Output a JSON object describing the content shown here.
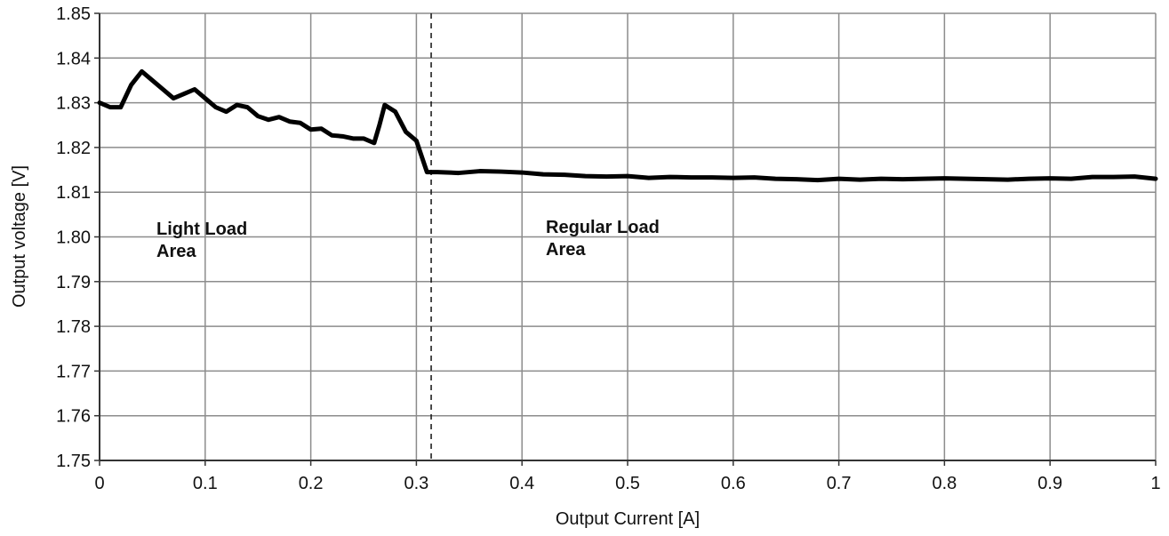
{
  "chart_data": {
    "type": "line",
    "x_label": "Output Current [A]",
    "y_label": "Output voltage [V]",
    "x": [
      0,
      0.01,
      0.02,
      0.03,
      0.04,
      0.05,
      0.06,
      0.07,
      0.08,
      0.09,
      0.1,
      0.11,
      0.12,
      0.13,
      0.14,
      0.15,
      0.16,
      0.17,
      0.18,
      0.19,
      0.2,
      0.21,
      0.22,
      0.23,
      0.24,
      0.25,
      0.26,
      0.265,
      0.27,
      0.28,
      0.29,
      0.3,
      0.31,
      0.32,
      0.34,
      0.36,
      0.38,
      0.4,
      0.42,
      0.44,
      0.46,
      0.48,
      0.5,
      0.52,
      0.54,
      0.56,
      0.58,
      0.6,
      0.62,
      0.64,
      0.66,
      0.68,
      0.7,
      0.72,
      0.74,
      0.76,
      0.78,
      0.8,
      0.82,
      0.84,
      0.86,
      0.88,
      0.9,
      0.92,
      0.94,
      0.96,
      0.98,
      1.0
    ],
    "series": [
      {
        "color": "#000000",
        "values": [
          1.83,
          1.829,
          1.829,
          1.834,
          1.837,
          1.835,
          1.833,
          1.831,
          1.832,
          1.833,
          1.831,
          1.829,
          1.828,
          1.8295,
          1.829,
          1.827,
          1.8262,
          1.8268,
          1.8258,
          1.8255,
          1.824,
          1.8242,
          1.8227,
          1.8225,
          1.822,
          1.822,
          1.821,
          1.825,
          1.8295,
          1.828,
          1.8235,
          1.8215,
          1.8145,
          1.8145,
          1.8143,
          1.8147,
          1.8146,
          1.8144,
          1.814,
          1.8139,
          1.8136,
          1.8135,
          1.8136,
          1.8132,
          1.8134,
          1.8133,
          1.8133,
          1.8132,
          1.8133,
          1.813,
          1.8129,
          1.8127,
          1.813,
          1.8128,
          1.813,
          1.8129,
          1.813,
          1.8131,
          1.813,
          1.8129,
          1.8128,
          1.813,
          1.8131,
          1.813,
          1.8134,
          1.8134,
          1.8135,
          1.813
        ]
      }
    ],
    "xlim": [
      0,
      1
    ],
    "xticks": [
      0,
      0.1,
      0.2,
      0.3,
      0.4,
      0.5,
      0.6,
      0.7,
      0.8,
      0.9,
      1
    ],
    "ylim": [
      1.75,
      1.85
    ],
    "yticks": [
      1.75,
      1.76,
      1.77,
      1.78,
      1.79,
      {
        "value": 1.8,
        "label": "1.80"
      },
      1.81,
      1.82,
      1.83,
      1.84,
      1.85
    ],
    "grid": true,
    "reference_line": {
      "x": 0.314,
      "style": "dashed"
    },
    "annotations": [
      {
        "lines": [
          "Light Load",
          "Area"
        ]
      },
      {
        "lines": [
          "Regular Load",
          "Area"
        ]
      }
    ]
  }
}
